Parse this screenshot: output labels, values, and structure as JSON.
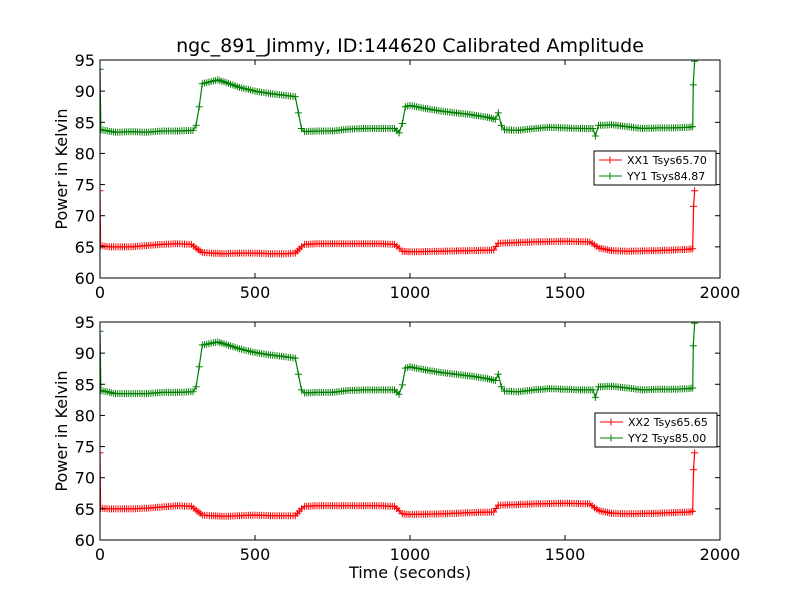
{
  "chart_data": [
    {
      "type": "line",
      "title": "ngc_891_Jimmy, ID:144620 Calibrated Amplitude",
      "xlabel": "",
      "ylabel": "Power in Kelvin",
      "xlim": [
        0,
        2000
      ],
      "ylim": [
        60,
        95
      ],
      "xticks": [
        "0",
        "500",
        "1000",
        "1500",
        "2000"
      ],
      "yticks": [
        "60",
        "65",
        "70",
        "75",
        "80",
        "85",
        "90",
        "95"
      ],
      "legend_position": "right",
      "series": [
        {
          "name": "XX1 Tsys65.70",
          "color": "#ff0000",
          "points": [
            [
              0,
              74.0
            ],
            [
              2,
              65.2
            ],
            [
              30,
              65.0
            ],
            [
              100,
              65.0
            ],
            [
              150,
              65.2
            ],
            [
              200,
              65.4
            ],
            [
              250,
              65.5
            ],
            [
              295,
              65.4
            ],
            [
              310,
              64.8
            ],
            [
              330,
              64.1
            ],
            [
              360,
              64.0
            ],
            [
              400,
              63.9
            ],
            [
              450,
              64.0
            ],
            [
              500,
              64.0
            ],
            [
              550,
              63.9
            ],
            [
              600,
              63.9
            ],
            [
              630,
              64.0
            ],
            [
              650,
              65.0
            ],
            [
              660,
              65.4
            ],
            [
              700,
              65.5
            ],
            [
              800,
              65.5
            ],
            [
              900,
              65.5
            ],
            [
              950,
              65.4
            ],
            [
              965,
              64.8
            ],
            [
              975,
              64.3
            ],
            [
              1000,
              64.2
            ],
            [
              1100,
              64.3
            ],
            [
              1200,
              64.4
            ],
            [
              1270,
              64.5
            ],
            [
              1285,
              65.6
            ],
            [
              1300,
              65.6
            ],
            [
              1400,
              65.8
            ],
            [
              1500,
              65.9
            ],
            [
              1580,
              65.8
            ],
            [
              1595,
              65.3
            ],
            [
              1610,
              64.8
            ],
            [
              1650,
              64.4
            ],
            [
              1700,
              64.3
            ],
            [
              1800,
              64.4
            ],
            [
              1900,
              64.6
            ],
            [
              1912,
              64.7
            ],
            [
              1915,
              71.5
            ],
            [
              1918,
              74.0
            ]
          ]
        },
        {
          "name": "YY1 Tsys84.87",
          "color": "#008000",
          "points": [
            [
              0,
              93.5
            ],
            [
              3,
              83.8
            ],
            [
              50,
              83.4
            ],
            [
              100,
              83.5
            ],
            [
              150,
              83.4
            ],
            [
              200,
              83.6
            ],
            [
              250,
              83.6
            ],
            [
              300,
              83.7
            ],
            [
              310,
              84.5
            ],
            [
              320,
              87.5
            ],
            [
              330,
              91.2
            ],
            [
              380,
              91.8
            ],
            [
              400,
              91.5
            ],
            [
              450,
              90.6
            ],
            [
              500,
              90.0
            ],
            [
              550,
              89.6
            ],
            [
              600,
              89.3
            ],
            [
              630,
              89.1
            ],
            [
              640,
              86.5
            ],
            [
              650,
              84.0
            ],
            [
              660,
              83.5
            ],
            [
              700,
              83.6
            ],
            [
              750,
              83.6
            ],
            [
              800,
              83.9
            ],
            [
              850,
              84.0
            ],
            [
              900,
              84.0
            ],
            [
              950,
              84.0
            ],
            [
              965,
              83.3
            ],
            [
              975,
              84.8
            ],
            [
              985,
              87.5
            ],
            [
              1000,
              87.7
            ],
            [
              1050,
              87.2
            ],
            [
              1100,
              86.8
            ],
            [
              1150,
              86.5
            ],
            [
              1200,
              86.2
            ],
            [
              1250,
              85.8
            ],
            [
              1275,
              85.5
            ],
            [
              1285,
              86.5
            ],
            [
              1295,
              84.5
            ],
            [
              1305,
              83.8
            ],
            [
              1350,
              83.7
            ],
            [
              1400,
              84.0
            ],
            [
              1450,
              84.2
            ],
            [
              1500,
              84.1
            ],
            [
              1550,
              84.0
            ],
            [
              1590,
              84.0
            ],
            [
              1598,
              82.8
            ],
            [
              1608,
              84.5
            ],
            [
              1650,
              84.6
            ],
            [
              1700,
              84.3
            ],
            [
              1750,
              84.0
            ],
            [
              1800,
              84.1
            ],
            [
              1850,
              84.1
            ],
            [
              1900,
              84.2
            ],
            [
              1912,
              84.3
            ],
            [
              1914,
              91.0
            ],
            [
              1918,
              94.8
            ]
          ]
        }
      ]
    },
    {
      "type": "line",
      "title": "",
      "xlabel": "Time (seconds)",
      "ylabel": "Power in Kelvin",
      "xlim": [
        0,
        2000
      ],
      "ylim": [
        60,
        95
      ],
      "xticks": [
        "0",
        "500",
        "1000",
        "1500",
        "2000"
      ],
      "yticks": [
        "60",
        "65",
        "70",
        "75",
        "80",
        "85",
        "90",
        "95"
      ],
      "legend_position": "right",
      "series": [
        {
          "name": "XX2 Tsys65.65",
          "color": "#ff0000",
          "points": [
            [
              0,
              74.0
            ],
            [
              2,
              65.1
            ],
            [
              30,
              65.0
            ],
            [
              100,
              65.0
            ],
            [
              150,
              65.1
            ],
            [
              200,
              65.3
            ],
            [
              250,
              65.5
            ],
            [
              295,
              65.4
            ],
            [
              310,
              64.8
            ],
            [
              330,
              64.0
            ],
            [
              360,
              63.9
            ],
            [
              400,
              63.8
            ],
            [
              450,
              63.9
            ],
            [
              500,
              64.0
            ],
            [
              550,
              63.9
            ],
            [
              600,
              63.9
            ],
            [
              630,
              63.9
            ],
            [
              650,
              65.0
            ],
            [
              660,
              65.4
            ],
            [
              700,
              65.5
            ],
            [
              800,
              65.5
            ],
            [
              900,
              65.5
            ],
            [
              950,
              65.4
            ],
            [
              965,
              64.7
            ],
            [
              975,
              64.2
            ],
            [
              1000,
              64.1
            ],
            [
              1100,
              64.2
            ],
            [
              1200,
              64.4
            ],
            [
              1270,
              64.5
            ],
            [
              1285,
              65.6
            ],
            [
              1300,
              65.6
            ],
            [
              1400,
              65.8
            ],
            [
              1500,
              65.9
            ],
            [
              1580,
              65.8
            ],
            [
              1595,
              65.2
            ],
            [
              1610,
              64.7
            ],
            [
              1650,
              64.3
            ],
            [
              1700,
              64.2
            ],
            [
              1800,
              64.3
            ],
            [
              1900,
              64.5
            ],
            [
              1912,
              64.6
            ],
            [
              1915,
              71.3
            ],
            [
              1918,
              74.0
            ]
          ]
        },
        {
          "name": "YY2 Tsys85.00",
          "color": "#008000",
          "points": [
            [
              0,
              93.5
            ],
            [
              3,
              84.0
            ],
            [
              50,
              83.5
            ],
            [
              100,
              83.5
            ],
            [
              150,
              83.5
            ],
            [
              200,
              83.7
            ],
            [
              250,
              83.7
            ],
            [
              300,
              83.8
            ],
            [
              310,
              84.6
            ],
            [
              320,
              87.8
            ],
            [
              330,
              91.3
            ],
            [
              380,
              91.8
            ],
            [
              400,
              91.5
            ],
            [
              450,
              90.7
            ],
            [
              500,
              90.1
            ],
            [
              550,
              89.7
            ],
            [
              600,
              89.4
            ],
            [
              630,
              89.2
            ],
            [
              640,
              86.6
            ],
            [
              650,
              84.1
            ],
            [
              660,
              83.6
            ],
            [
              700,
              83.7
            ],
            [
              750,
              83.7
            ],
            [
              800,
              84.0
            ],
            [
              850,
              84.1
            ],
            [
              900,
              84.1
            ],
            [
              950,
              84.1
            ],
            [
              965,
              83.4
            ],
            [
              975,
              84.9
            ],
            [
              985,
              87.6
            ],
            [
              1000,
              87.8
            ],
            [
              1050,
              87.3
            ],
            [
              1100,
              86.9
            ],
            [
              1150,
              86.6
            ],
            [
              1200,
              86.3
            ],
            [
              1250,
              85.9
            ],
            [
              1275,
              85.6
            ],
            [
              1285,
              86.6
            ],
            [
              1295,
              84.6
            ],
            [
              1305,
              83.9
            ],
            [
              1350,
              83.8
            ],
            [
              1400,
              84.1
            ],
            [
              1450,
              84.3
            ],
            [
              1500,
              84.2
            ],
            [
              1550,
              84.1
            ],
            [
              1590,
              84.1
            ],
            [
              1598,
              82.9
            ],
            [
              1608,
              84.6
            ],
            [
              1650,
              84.7
            ],
            [
              1700,
              84.4
            ],
            [
              1750,
              84.1
            ],
            [
              1800,
              84.2
            ],
            [
              1850,
              84.2
            ],
            [
              1900,
              84.3
            ],
            [
              1912,
              84.4
            ],
            [
              1914,
              91.2
            ],
            [
              1918,
              94.8
            ]
          ]
        }
      ]
    }
  ]
}
